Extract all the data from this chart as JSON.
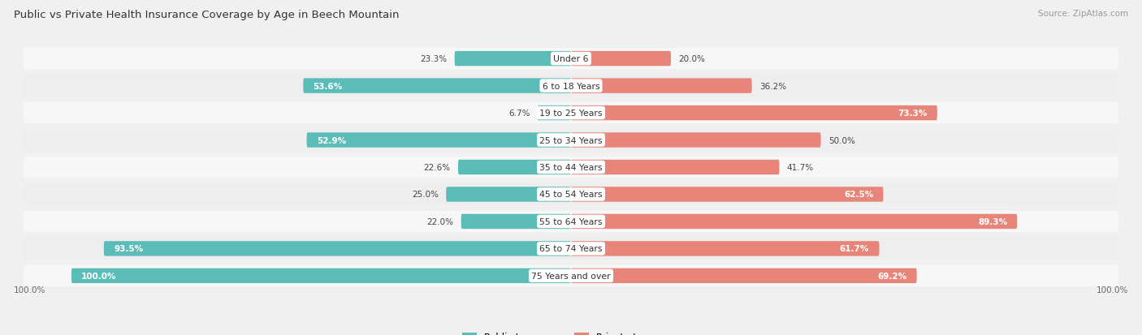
{
  "title": "Public vs Private Health Insurance Coverage by Age in Beech Mountain",
  "source": "Source: ZipAtlas.com",
  "categories": [
    "Under 6",
    "6 to 18 Years",
    "19 to 25 Years",
    "25 to 34 Years",
    "35 to 44 Years",
    "45 to 54 Years",
    "55 to 64 Years",
    "65 to 74 Years",
    "75 Years and over"
  ],
  "public_values": [
    23.3,
    53.6,
    6.7,
    52.9,
    22.6,
    25.0,
    22.0,
    93.5,
    100.0
  ],
  "private_values": [
    20.0,
    36.2,
    73.3,
    50.0,
    41.7,
    62.5,
    89.3,
    61.7,
    69.2
  ],
  "public_color": "#5bbcb8",
  "private_color": "#e8857a",
  "bg_color": "#f0f0f0",
  "row_bg_light": "#f7f7f7",
  "row_bg_dark": "#eeeeee",
  "label_dark": "#444444",
  "label_light": "#ffffff",
  "title_color": "#333333",
  "max_value": 100.0,
  "legend_public": "Public Insurance",
  "legend_private": "Private Insurance",
  "inside_label_threshold_public": 35,
  "inside_label_threshold_private": 60
}
